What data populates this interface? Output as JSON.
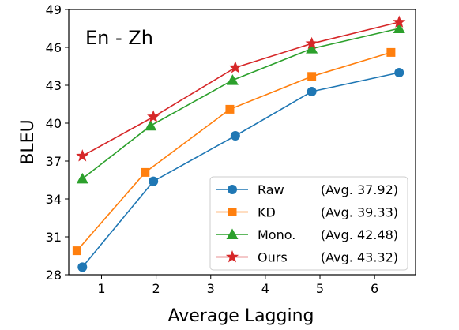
{
  "chart_data": {
    "type": "line",
    "annotation": "En - Zh",
    "xlabel": "Average Lagging",
    "ylabel": "BLEU",
    "xlim": [
      0.4,
      6.75
    ],
    "ylim": [
      28,
      49
    ],
    "xticks": [
      1,
      2,
      3,
      4,
      5,
      6
    ],
    "yticks": [
      28,
      31,
      34,
      37,
      40,
      43,
      46,
      49
    ],
    "grid": false,
    "legend_position": "lower-right",
    "series": [
      {
        "name": "Raw",
        "legend_label": "Raw",
        "legend_avg": "(Avg. 37.92)",
        "marker": "circle",
        "color": "#1f77b4",
        "points": [
          [
            0.65,
            28.6
          ],
          [
            1.95,
            35.4
          ],
          [
            3.45,
            39.0
          ],
          [
            4.85,
            42.5
          ],
          [
            6.45,
            44.0
          ]
        ]
      },
      {
        "name": "KD",
        "legend_label": "KD",
        "legend_avg": "(Avg. 39.33)",
        "marker": "square",
        "color": "#ff7f0e",
        "points": [
          [
            0.55,
            29.9
          ],
          [
            1.8,
            36.1
          ],
          [
            3.35,
            41.1
          ],
          [
            4.85,
            43.7
          ],
          [
            6.3,
            45.6
          ]
        ]
      },
      {
        "name": "Mono.",
        "legend_label": "Mono.",
        "legend_avg": "(Avg. 42.48)",
        "marker": "triangle",
        "color": "#2ca02c",
        "points": [
          [
            0.65,
            35.6
          ],
          [
            1.9,
            39.8
          ],
          [
            3.4,
            43.4
          ],
          [
            4.85,
            45.9
          ],
          [
            6.45,
            47.5
          ]
        ]
      },
      {
        "name": "Ours",
        "legend_label": "Ours",
        "legend_avg": "(Avg. 43.32)",
        "marker": "star",
        "color": "#d62728",
        "points": [
          [
            0.65,
            37.4
          ],
          [
            1.95,
            40.5
          ],
          [
            3.45,
            44.4
          ],
          [
            4.85,
            46.3
          ],
          [
            6.45,
            48.0
          ]
        ]
      }
    ]
  }
}
